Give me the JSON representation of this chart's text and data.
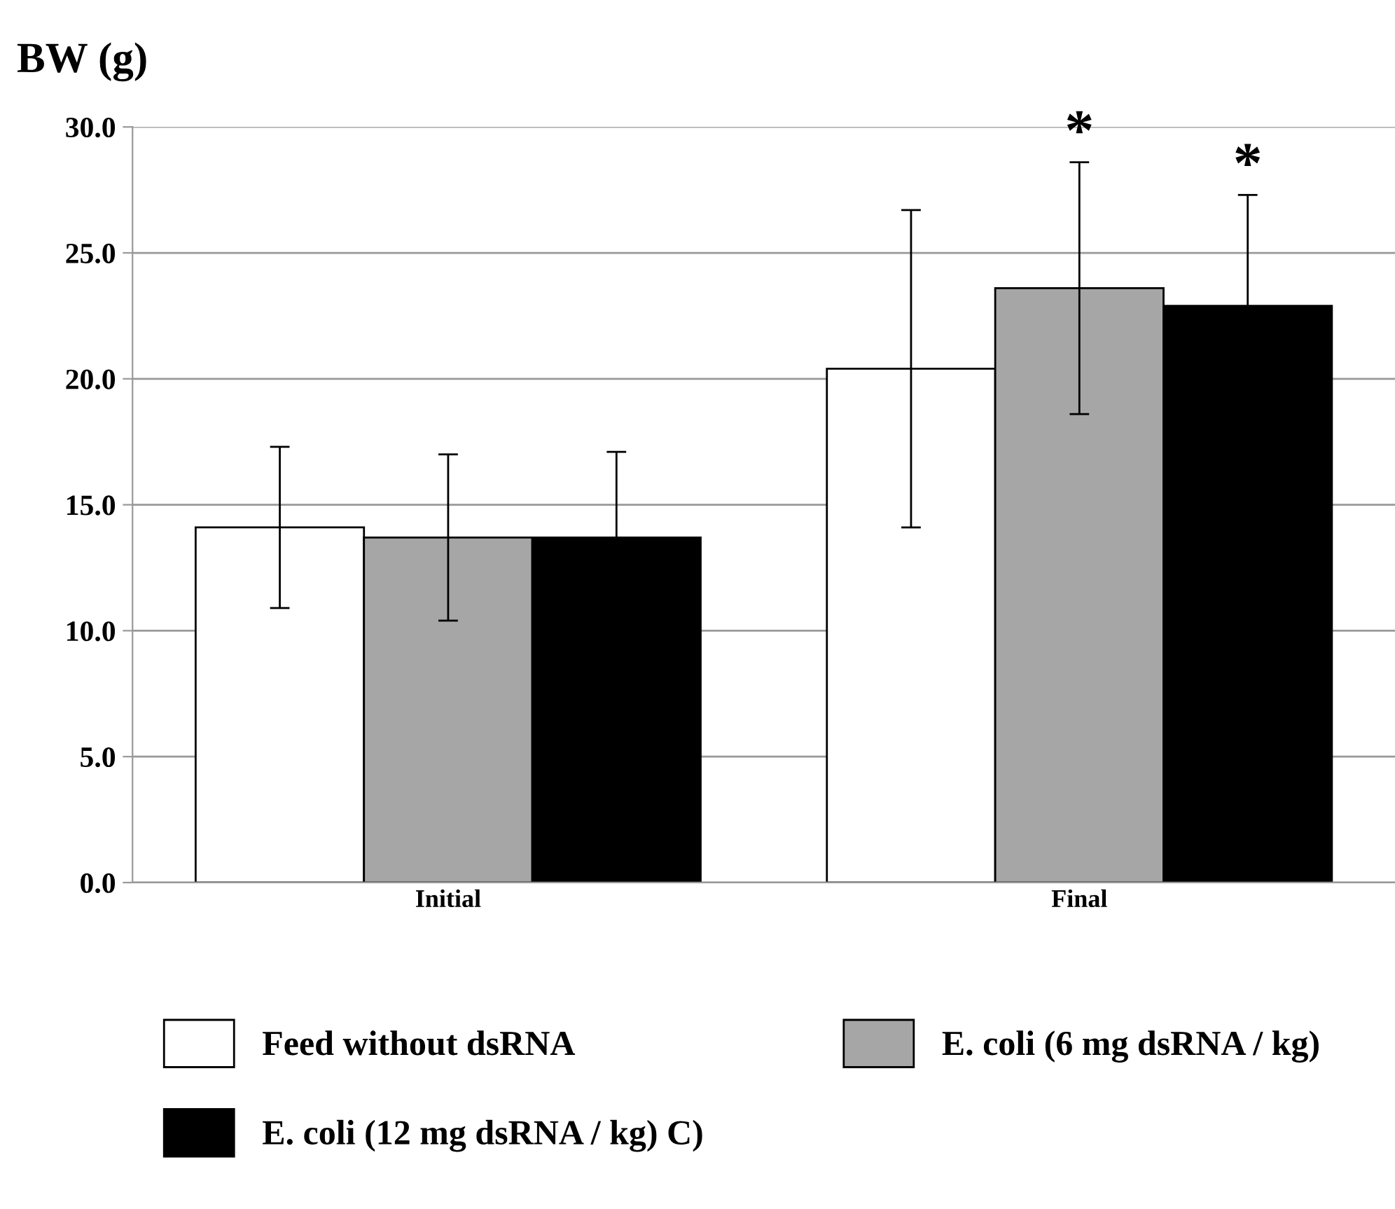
{
  "chart_data": {
    "type": "bar",
    "title": "BW (g)",
    "categories": [
      "Initial",
      "Final"
    ],
    "series": [
      {
        "name": "Feed without dsRNA",
        "color": "#ffffff",
        "values": [
          14.1,
          20.4
        ],
        "errors": [
          3.2,
          6.3
        ]
      },
      {
        "name": "E. coli (6 mg dsRNA / kg)",
        "color": "#a6a6a6",
        "values": [
          13.7,
          23.6
        ],
        "errors": [
          3.3,
          5.0
        ]
      },
      {
        "name": "E. coli (12 mg dsRNA / kg) C)",
        "color": "#000000",
        "values": [
          13.7,
          22.9
        ],
        "errors": [
          3.4,
          4.4
        ]
      }
    ],
    "annotations": [
      {
        "text": "*",
        "x": "Final",
        "y": 28.6
      },
      {
        "text": "*",
        "x": "Final",
        "y": 27.3
      }
    ],
    "ylim": [
      0,
      30
    ],
    "yticks": [
      {
        "value": 0,
        "label": "0.0"
      },
      {
        "value": 5,
        "label": "5.0"
      },
      {
        "value": 10,
        "label": "10.0"
      },
      {
        "value": 15,
        "label": "15.0"
      },
      {
        "value": 20,
        "label": "20.0"
      },
      {
        "value": 25,
        "label": "25.0"
      },
      {
        "value": 30,
        "label": "30.0"
      }
    ],
    "grid": "y",
    "legend": "bottom"
  }
}
